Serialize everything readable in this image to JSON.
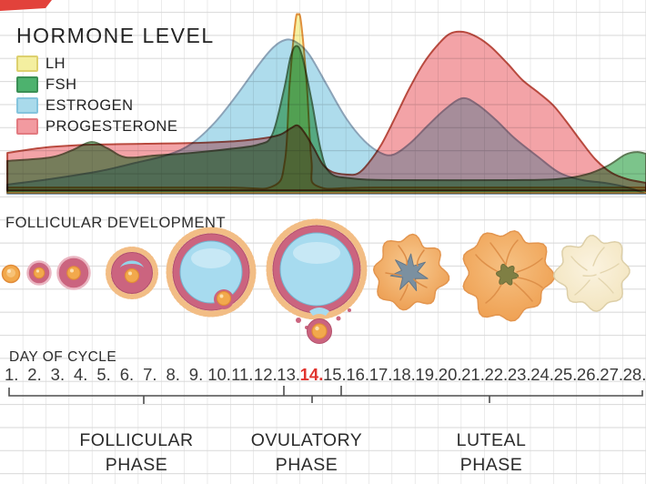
{
  "header": {
    "title": "HORMONE LEVEL"
  },
  "legend": [
    {
      "label": "LH",
      "fill": "#f4efa0",
      "border": "#ddd06e"
    },
    {
      "label": "FSH",
      "fill": "#4db26e",
      "border": "#3a8f55"
    },
    {
      "label": "ESTROGEN",
      "fill": "#a9daeb",
      "border": "#84c4dd"
    },
    {
      "label": "PROGESTERONE",
      "fill": "#f29aa0",
      "border": "#e27a80"
    }
  ],
  "sections": {
    "follicular_development": "FOLLICULAR DEVELOPMENT",
    "day_of_cycle": "DAY OF CYCLE"
  },
  "day_of_cycle": {
    "days": [
      "1.",
      "2.",
      "3.",
      "4.",
      "5.",
      "6.",
      "7.",
      "8.",
      "9.",
      "10.",
      "11.",
      "12.",
      "13.",
      "14.",
      "15.",
      "16.",
      "17.",
      "18.",
      "19.",
      "20.",
      "21.",
      "22.",
      "23.",
      "24.",
      "25.",
      "26.",
      "27.",
      "28."
    ],
    "highlighted_day": "14.",
    "highlight_color": "#e0342e"
  },
  "phases": [
    {
      "lines": [
        "FOLLICULAR",
        "PHASE"
      ]
    },
    {
      "lines": [
        "OVULATORY",
        "PHASE"
      ]
    },
    {
      "lines": [
        "LUTEAL",
        "PHASE"
      ]
    }
  ],
  "follicle_stage_icons": [
    "primordial-follicle-icon",
    "primary-follicle-icon",
    "secondary-follicle-icon",
    "early-antral-follicle-icon",
    "mature-follicle-icon",
    "ovulation-icon",
    "early-corpus-luteum-icon",
    "corpus-luteum-icon",
    "corpus-albicans-icon"
  ],
  "colors": {
    "grid": "#d7d7d7",
    "text": "#2b2b2b",
    "bracket": "#4d4d4d",
    "menstruation_marker": "#e2423b"
  },
  "hormone_chart": {
    "type": "area",
    "x_axis": "day of cycle (1-28)",
    "y_axis": "relative hormone level (0-100, unlabeled in figure)",
    "legend_position": "top-left",
    "series": [
      {
        "name": "LH",
        "fill": "#f6f1a3",
        "stroke": "#e0913d",
        "base": 0,
        "points": [
          [
            0.82,
            3
          ],
          [
            10,
            3
          ],
          [
            12.3,
            3.5
          ],
          [
            12.85,
            18
          ],
          [
            13.05,
            60
          ],
          [
            13.3,
            95
          ],
          [
            13.42,
            99.5
          ],
          [
            13.55,
            95
          ],
          [
            13.8,
            60
          ],
          [
            14.0,
            18
          ],
          [
            14.3,
            3.5
          ],
          [
            17,
            3
          ],
          [
            28.5,
            3
          ]
        ]
      },
      {
        "name": "ESTROGEN",
        "fill": "#aedcec",
        "stroke": "#8ba3b8",
        "base": -0.5,
        "points": [
          [
            0.82,
            4.6
          ],
          [
            2.9,
            8.1
          ],
          [
            4.85,
            12.2
          ],
          [
            6.4,
            16.8
          ],
          [
            7.8,
            21.3
          ],
          [
            8.8,
            27.4
          ],
          [
            9.8,
            39.1
          ],
          [
            10.75,
            54.3
          ],
          [
            11.75,
            72.1
          ],
          [
            12.35,
            81.2
          ],
          [
            12.85,
            85.3
          ],
          [
            13.3,
            84.3
          ],
          [
            13.9,
            77.2
          ],
          [
            14.7,
            59.4
          ],
          [
            15.5,
            41.6
          ],
          [
            16.3,
            28.9
          ],
          [
            17.0,
            22.3
          ],
          [
            17.55,
            21.3
          ],
          [
            18.25,
            27.4
          ],
          [
            19.05,
            37.6
          ],
          [
            19.8,
            46.7
          ],
          [
            20.55,
            52.8
          ],
          [
            21.2,
            49.2
          ],
          [
            22.0,
            40.6
          ],
          [
            22.8,
            30.5
          ],
          [
            23.8,
            20.3
          ],
          [
            24.75,
            11.2
          ],
          [
            25.75,
            7.1
          ],
          [
            26.7,
            5.6
          ],
          [
            27.7,
            3.0
          ],
          [
            28.5,
            -0.5
          ]
        ]
      },
      {
        "name": "FSH",
        "fill": "#7cc48b",
        "stroke": "#5d7a55",
        "base": 1.0,
        "points": [
          [
            0.82,
            17.8
          ],
          [
            2.7,
            19.8
          ],
          [
            3.65,
            23.9
          ],
          [
            4.45,
            28.4
          ],
          [
            5.15,
            24.9
          ],
          [
            5.95,
            19.8
          ],
          [
            7.2,
            20.8
          ],
          [
            8.8,
            22.3
          ],
          [
            10.4,
            24.4
          ],
          [
            11.7,
            26.9
          ],
          [
            12.3,
            32.5
          ],
          [
            12.8,
            57
          ],
          [
            13.1,
            76
          ],
          [
            13.35,
            82
          ],
          [
            13.6,
            76
          ],
          [
            14.0,
            52
          ],
          [
            14.4,
            24
          ],
          [
            14.8,
            11.2
          ],
          [
            15.7,
            8.1
          ],
          [
            17.5,
            7.1
          ],
          [
            22.6,
            7.1
          ],
          [
            24.6,
            7.6
          ],
          [
            25.9,
            10.2
          ],
          [
            26.85,
            15.2
          ],
          [
            27.6,
            21.3
          ],
          [
            28.1,
            22.8
          ],
          [
            28.5,
            21.8
          ]
        ]
      },
      {
        "name": "PROGESTERONE",
        "fill": "#f3a3a7",
        "stroke": "#b94a3f",
        "base": 1.5,
        "points": [
          [
            0.82,
            22.3
          ],
          [
            2.5,
            25.4
          ],
          [
            4.45,
            26.9
          ],
          [
            6.8,
            27.4
          ],
          [
            9.2,
            27.9
          ],
          [
            10.75,
            28.9
          ],
          [
            11.95,
            30.5
          ],
          [
            12.65,
            32.5
          ],
          [
            13.1,
            36
          ],
          [
            13.4,
            37.6
          ],
          [
            13.7,
            33.5
          ],
          [
            14.1,
            24.9
          ],
          [
            14.5,
            15.7
          ],
          [
            14.9,
            11.7
          ],
          [
            15.5,
            10.2
          ],
          [
            16.0,
            10.7
          ],
          [
            16.45,
            16.2
          ],
          [
            17.05,
            27.4
          ],
          [
            17.65,
            42.6
          ],
          [
            18.25,
            58.4
          ],
          [
            18.85,
            72.1
          ],
          [
            19.45,
            82.2
          ],
          [
            20.0,
            88.8
          ],
          [
            20.6,
            89.8
          ],
          [
            21.2,
            86.8
          ],
          [
            21.8,
            81.2
          ],
          [
            22.5,
            72.1
          ],
          [
            23.15,
            62.9
          ],
          [
            23.85,
            55.8
          ],
          [
            24.45,
            49.2
          ],
          [
            25.0,
            40.6
          ],
          [
            25.65,
            29.4
          ],
          [
            26.3,
            18.8
          ],
          [
            27.0,
            11.2
          ],
          [
            27.7,
            7.6
          ],
          [
            28.5,
            5.6
          ]
        ]
      }
    ]
  }
}
